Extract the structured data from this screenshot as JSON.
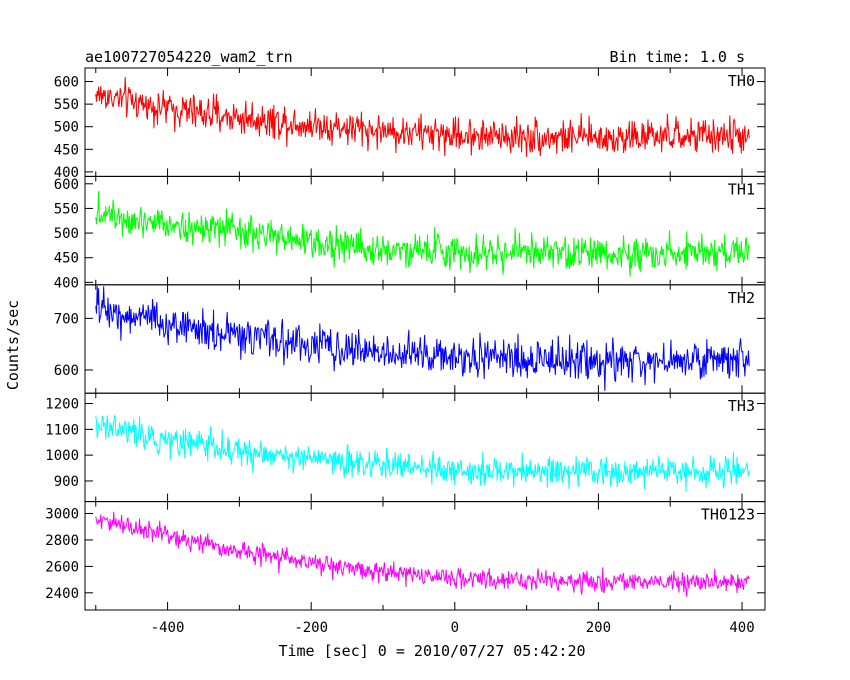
{
  "chart_data": {
    "type": "line",
    "title": "ae100727054220_wam2_trn",
    "subtitle": "Bin time: 1.0 s",
    "xlabel": "Time [sec] 0 = 2010/07/27 05:42:20",
    "ylabel": "Counts/sec",
    "xlim": [
      -515,
      432
    ],
    "xticks": [
      -400,
      -200,
      0,
      200,
      400
    ],
    "grid": false,
    "panels": [
      {
        "name": "TH0",
        "color": "#ff0000",
        "ylim": [
          390,
          630
        ],
        "yticks": [
          400,
          450,
          500,
          550,
          600
        ],
        "x": [
          -500,
          -400,
          -300,
          -200,
          -100,
          0,
          100,
          200,
          300,
          410
        ],
        "values": [
          572,
          540,
          520,
          505,
          490,
          482,
          478,
          476,
          478,
          480
        ],
        "noise": 28
      },
      {
        "name": "TH1",
        "color": "#00ff00",
        "ylim": [
          395,
          615
        ],
        "yticks": [
          400,
          450,
          500,
          550,
          600
        ],
        "x": [
          -500,
          -400,
          -300,
          -200,
          -100,
          0,
          100,
          200,
          300,
          410
        ],
        "values": [
          545,
          520,
          500,
          482,
          468,
          462,
          460,
          458,
          460,
          462
        ],
        "noise": 25
      },
      {
        "name": "TH2",
        "color": "#0000ff",
        "ylim": [
          555,
          765
        ],
        "yticks": [
          600,
          700
        ],
        "x": [
          -500,
          -400,
          -300,
          -200,
          -100,
          0,
          100,
          200,
          300,
          410
        ],
        "values": [
          720,
          690,
          665,
          648,
          635,
          625,
          620,
          618,
          618,
          620
        ],
        "noise": 27
      },
      {
        "name": "TH3",
        "color": "#00ffff",
        "ylim": [
          820,
          1240
        ],
        "yticks": [
          900,
          1000,
          1100,
          1200
        ],
        "x": [
          -500,
          -400,
          -300,
          -200,
          -100,
          0,
          100,
          200,
          300,
          410
        ],
        "values": [
          1120,
          1060,
          1015,
          985,
          960,
          945,
          935,
          932,
          935,
          938
        ],
        "noise": 40
      },
      {
        "name": "TH0123",
        "color": "#ff00ff",
        "ylim": [
          2270,
          3090
        ],
        "yticks": [
          2400,
          2600,
          2800,
          3000
        ],
        "x": [
          -500,
          -400,
          -300,
          -200,
          -100,
          0,
          100,
          200,
          300,
          410
        ],
        "values": [
          2960,
          2830,
          2720,
          2630,
          2550,
          2510,
          2490,
          2480,
          2480,
          2480
        ],
        "noise": 55
      }
    ]
  }
}
